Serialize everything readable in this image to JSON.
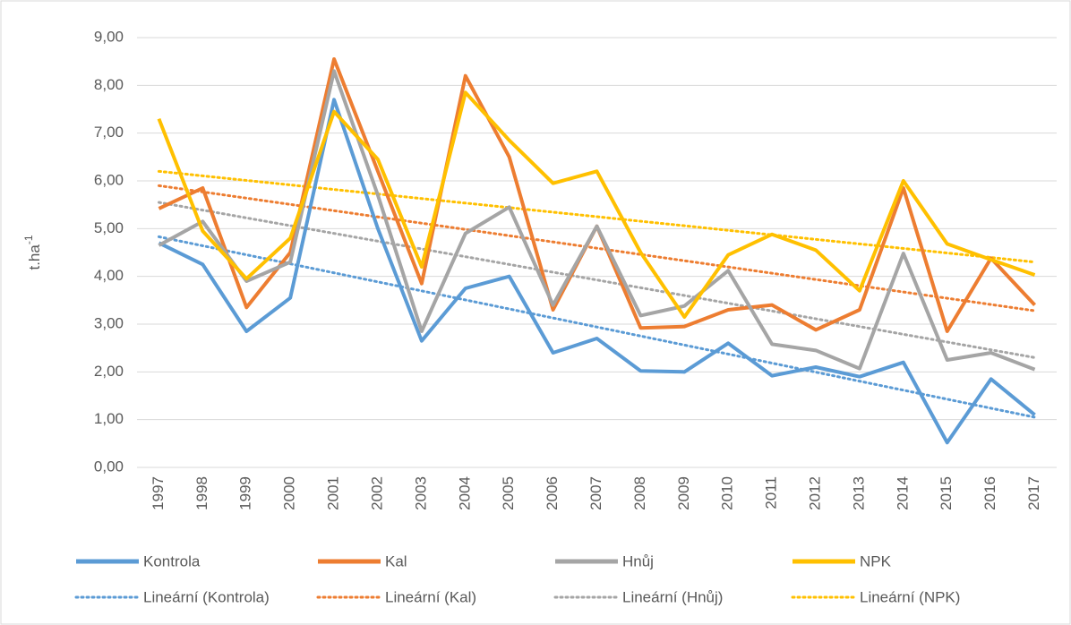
{
  "chart_data": {
    "type": "line",
    "y_label": {
      "base": "t.ha",
      "superscript": "-1"
    },
    "categories": [
      "1997",
      "1998",
      "1999",
      "2000",
      "2001",
      "2002",
      "2003",
      "2004",
      "2005",
      "2006",
      "2007",
      "2008",
      "2009",
      "2010",
      "2011",
      "2012",
      "2013",
      "2014",
      "2015",
      "2016",
      "2017"
    ],
    "series": [
      {
        "name": "Kontrola",
        "color": "#5b9bd5",
        "values": [
          4.7,
          4.25,
          2.85,
          3.55,
          7.7,
          5.0,
          2.65,
          3.75,
          4.0,
          2.4,
          2.7,
          2.02,
          2.0,
          2.6,
          1.92,
          2.1,
          1.9,
          2.2,
          0.52,
          1.85,
          1.1
        ]
      },
      {
        "name": "Kal",
        "color": "#ed7d31",
        "values": [
          5.42,
          5.85,
          3.35,
          4.5,
          8.55,
          6.2,
          3.85,
          8.2,
          6.5,
          3.3,
          5.05,
          2.92,
          2.95,
          3.3,
          3.4,
          2.88,
          3.3,
          5.85,
          2.85,
          4.38,
          3.4
        ]
      },
      {
        "name": "Hnůj",
        "color": "#a5a5a5",
        "values": [
          4.65,
          5.15,
          3.9,
          4.3,
          8.3,
          5.7,
          2.85,
          4.9,
          5.45,
          3.4,
          5.05,
          3.18,
          3.38,
          4.12,
          2.58,
          2.45,
          2.07,
          4.48,
          2.25,
          2.4,
          2.05
        ]
      },
      {
        "name": "NPK",
        "color": "#ffc000",
        "values": [
          7.3,
          4.95,
          3.95,
          4.8,
          7.45,
          6.45,
          4.2,
          7.85,
          6.85,
          5.95,
          6.2,
          4.5,
          3.15,
          4.45,
          4.88,
          4.55,
          3.7,
          6.0,
          4.68,
          4.35,
          4.03
        ]
      }
    ],
    "trendlines": [
      {
        "name": "Lineární (Kontrola)",
        "color": "#5b9bd5",
        "values": [
          4.83,
          1.05
        ]
      },
      {
        "name": "Lineární (Kal)",
        "color": "#ed7d31",
        "values": [
          5.9,
          3.28
        ]
      },
      {
        "name": "Lineární (Hnůj)",
        "color": "#a5a5a5",
        "values": [
          5.55,
          2.3
        ]
      },
      {
        "name": "Lineární (NPK)",
        "color": "#ffc000",
        "values": [
          6.2,
          4.3
        ]
      }
    ],
    "ylim": [
      0,
      9
    ],
    "yticks": [
      {
        "value": 0,
        "label": "0,00"
      },
      {
        "value": 1,
        "label": "1,00"
      },
      {
        "value": 2,
        "label": "2,00"
      },
      {
        "value": 3,
        "label": "3,00"
      },
      {
        "value": 4,
        "label": "4,00"
      },
      {
        "value": 5,
        "label": "5,00"
      },
      {
        "value": 6,
        "label": "6,00"
      },
      {
        "value": 7,
        "label": "7,00"
      },
      {
        "value": 8,
        "label": "8,00"
      },
      {
        "value": 9,
        "label": "9,00"
      }
    ],
    "grid": true,
    "legend": "bottom"
  }
}
